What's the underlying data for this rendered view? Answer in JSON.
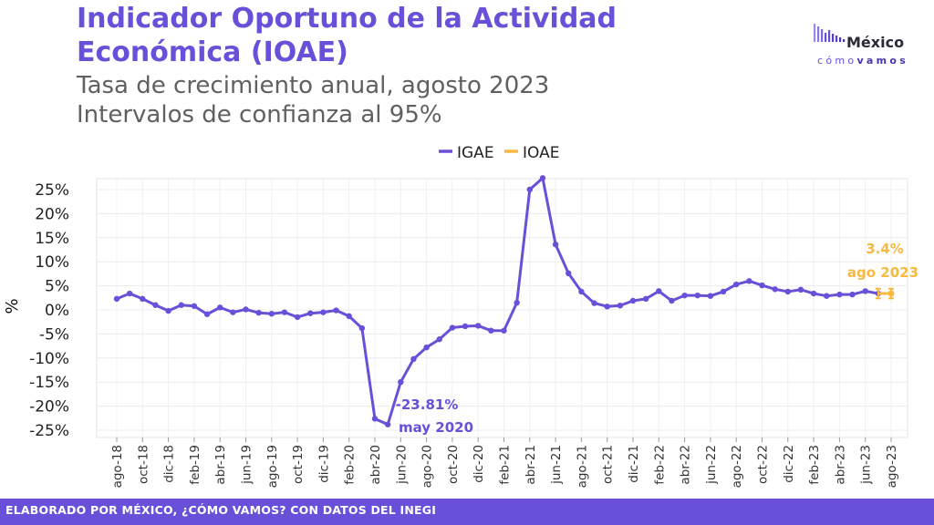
{
  "header": {
    "title_line1": "Indicador Oportuno de la Actividad",
    "title_line2": "Económica (IOAE)",
    "subtitle_line1": "Tasa de crecimiento anual, agosto 2023",
    "subtitle_line2": "Intervalos de confianza al 95%"
  },
  "logo": {
    "line1": "México",
    "line2_light": "cómo",
    "line2_bold": "vamos"
  },
  "footer": {
    "text": "ELABORADO POR MÉXICO, ¿CÓMO VAMOS? CON DATOS DEL INEGI"
  },
  "colors": {
    "igae": "#6a4fd8",
    "ioae": "#f7b93f",
    "title": "#6a4fd8",
    "subtitle": "#606060"
  },
  "chart_data": {
    "type": "line",
    "ylabel": "%",
    "ylim": [
      -25,
      25
    ],
    "yticks": [
      "-25%",
      "-20%",
      "-15%",
      "-10%",
      "-5%",
      "0%",
      "5%",
      "10%",
      "15%",
      "20%",
      "25%"
    ],
    "grid": true,
    "legend_position": "top-center",
    "x": [
      "ago-18",
      "sep-18",
      "oct-18",
      "nov-18",
      "dic-18",
      "ene-19",
      "feb-19",
      "mar-19",
      "abr-19",
      "may-19",
      "jun-19",
      "jul-19",
      "ago-19",
      "sep-19",
      "oct-19",
      "nov-19",
      "dic-19",
      "ene-20",
      "feb-20",
      "mar-20",
      "abr-20",
      "may-20",
      "jun-20",
      "jul-20",
      "ago-20",
      "sep-20",
      "oct-20",
      "nov-20",
      "dic-20",
      "ene-21",
      "feb-21",
      "mar-21",
      "abr-21",
      "may-21",
      "jun-21",
      "jul-21",
      "ago-21",
      "sep-21",
      "oct-21",
      "nov-21",
      "dic-21",
      "ene-22",
      "feb-22",
      "mar-22",
      "abr-22",
      "may-22",
      "jun-22",
      "jul-22",
      "ago-22",
      "sep-22",
      "oct-22",
      "nov-22",
      "dic-22",
      "ene-23",
      "feb-23",
      "mar-23",
      "abr-23",
      "may-23",
      "jun-23",
      "jul-23",
      "ago-23"
    ],
    "x_tick_labels": [
      "ago-18",
      "oct-18",
      "dic-18",
      "feb-19",
      "abr-19",
      "jun-19",
      "ago-19",
      "oct-19",
      "dic-19",
      "feb-20",
      "abr-20",
      "jun-20",
      "ago-20",
      "oct-20",
      "dic-20",
      "feb-21",
      "abr-21",
      "jun-21",
      "ago-21",
      "oct-21",
      "dic-21",
      "feb-22",
      "abr-22",
      "jun-22",
      "ago-22",
      "oct-22",
      "dic-22",
      "feb-23",
      "abr-23",
      "jun-23",
      "ago-23"
    ],
    "series": [
      {
        "name": "IGAE",
        "values": [
          2.3,
          3.4,
          2.3,
          1.0,
          -0.2,
          1.0,
          0.8,
          -0.9,
          0.5,
          -0.5,
          0.1,
          -0.6,
          -0.8,
          -0.5,
          -1.5,
          -0.7,
          -0.5,
          -0.1,
          -1.3,
          -3.8,
          -22.6,
          -23.81,
          -15.0,
          -10.2,
          -7.8,
          -6.1,
          -3.7,
          -3.4,
          -3.3,
          -4.3,
          -4.3,
          1.5,
          25.0,
          27.4,
          13.6,
          7.6,
          3.8,
          1.4,
          0.7,
          0.9,
          1.9,
          2.3,
          3.9,
          1.9,
          3.0,
          3.0,
          2.9,
          3.8,
          5.3,
          6.0,
          5.1,
          4.3,
          3.8,
          4.2,
          3.4,
          2.9,
          3.2,
          3.2,
          3.9,
          3.4,
          null
        ]
      },
      {
        "name": "IOAE",
        "point_index": 60,
        "value": 3.4,
        "ci_low": 2.4,
        "ci_high": 4.4,
        "interval_start_index": 59
      }
    ],
    "annotations": {
      "min_value": "-23.81%",
      "min_date": "may 2020",
      "last_value": "3.4%",
      "last_date": "ago 2023"
    }
  }
}
